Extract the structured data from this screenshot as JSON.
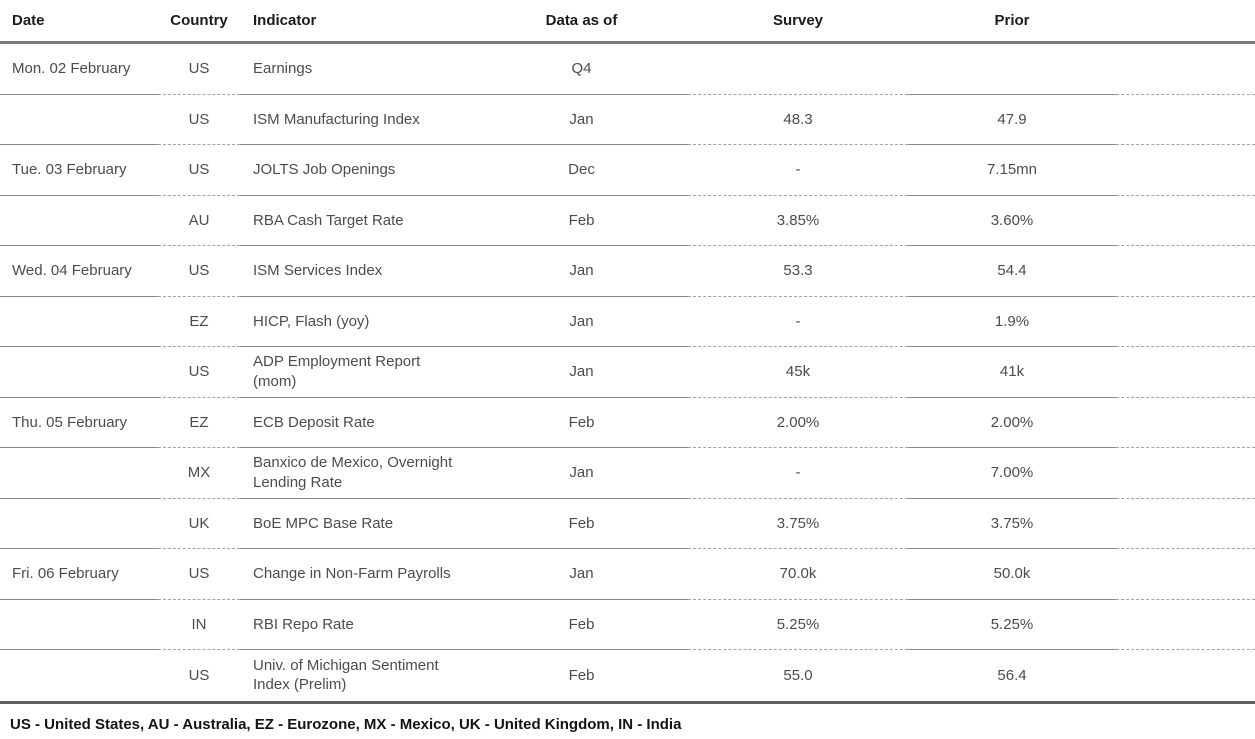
{
  "table": {
    "columns": {
      "date": "Date",
      "country": "Country",
      "indicator": "Indicator",
      "data_as_of": "Data as of",
      "survey": "Survey",
      "prior": "Prior"
    },
    "rows": [
      {
        "date": "Mon. 02 February",
        "country": "US",
        "indicator": "Earnings",
        "data_as_of": "Q4",
        "survey": "",
        "prior": ""
      },
      {
        "date": "",
        "country": "US",
        "indicator": "ISM Manufacturing Index",
        "data_as_of": "Jan",
        "survey": "48.3",
        "prior": "47.9"
      },
      {
        "date": "Tue. 03 February",
        "country": "US",
        "indicator": "JOLTS Job Openings",
        "data_as_of": "Dec",
        "survey": "-",
        "prior": "7.15mn"
      },
      {
        "date": "",
        "country": "AU",
        "indicator": "RBA Cash Target Rate",
        "data_as_of": "Feb",
        "survey": "3.85%",
        "prior": "3.60%"
      },
      {
        "date": "Wed. 04 February",
        "country": "US",
        "indicator": "ISM Services Index",
        "data_as_of": "Jan",
        "survey": "53.3",
        "prior": "54.4"
      },
      {
        "date": "",
        "country": "EZ",
        "indicator": "HICP, Flash (yoy)",
        "data_as_of": "Jan",
        "survey": "-",
        "prior": "1.9%"
      },
      {
        "date": "",
        "country": "US",
        "indicator": "ADP Employment Report\n(mom)",
        "data_as_of": "Jan",
        "survey": "45k",
        "prior": "41k"
      },
      {
        "date": "Thu. 05 February",
        "country": "EZ",
        "indicator": "ECB Deposit Rate",
        "data_as_of": "Feb",
        "survey": "2.00%",
        "prior": "2.00%"
      },
      {
        "date": "",
        "country": "MX",
        "indicator": "Banxico de Mexico, Overnight\nLending Rate",
        "data_as_of": "Jan",
        "survey": "-",
        "prior": "7.00%"
      },
      {
        "date": "",
        "country": "UK",
        "indicator": "BoE MPC Base Rate",
        "data_as_of": "Feb",
        "survey": "3.75%",
        "prior": "3.75%"
      },
      {
        "date": "Fri. 06 February",
        "country": "US",
        "indicator": "Change in Non-Farm Payrolls",
        "data_as_of": "Jan",
        "survey": "70.0k",
        "prior": "50.0k"
      },
      {
        "date": "",
        "country": "IN",
        "indicator": "RBI Repo Rate",
        "data_as_of": "Feb",
        "survey": "5.25%",
        "prior": "5.25%"
      },
      {
        "date": "",
        "country": "US",
        "indicator": "Univ. of Michigan Sentiment\nIndex (Prelim)",
        "data_as_of": "Feb",
        "survey": "55.0",
        "prior": "56.4"
      }
    ]
  },
  "footer": {
    "legend": "US - United States, AU - Australia, EZ - Eurozone, MX - Mexico, UK - United Kingdom, IN - India"
  },
  "colors": {
    "header_rule": "#7b7b7b",
    "bottom_rule": "#5e5e5e",
    "row_rule_solid": "#8a8a8a",
    "row_rule_dashed": "#a3a3a3",
    "header_text": "#1c1c1c",
    "body_text": "#4c4c4c"
  }
}
